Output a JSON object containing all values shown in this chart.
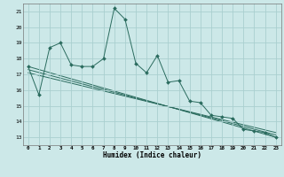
{
  "xlabel": "Humidex (Indice chaleur)",
  "bg_color": "#cce8e8",
  "grid_color": "#aacfcf",
  "line_color": "#2a6b5e",
  "xlim": [
    -0.5,
    23.5
  ],
  "ylim": [
    12.5,
    21.5
  ],
  "yticks": [
    13,
    14,
    15,
    16,
    17,
    18,
    19,
    20,
    21
  ],
  "xticks": [
    0,
    1,
    2,
    3,
    4,
    5,
    6,
    7,
    8,
    9,
    10,
    11,
    12,
    13,
    14,
    15,
    16,
    17,
    18,
    19,
    20,
    21,
    22,
    23
  ],
  "series1": {
    "x": [
      0,
      1,
      2,
      3,
      4,
      5,
      6,
      7,
      8,
      9,
      10,
      11,
      12,
      13,
      14,
      15,
      16,
      17,
      18,
      19,
      20,
      21,
      22,
      23
    ],
    "y": [
      17.5,
      15.7,
      18.7,
      19.0,
      17.6,
      17.5,
      17.5,
      18.0,
      21.2,
      20.5,
      17.7,
      17.1,
      18.2,
      16.5,
      16.6,
      15.3,
      15.2,
      14.4,
      14.3,
      14.2,
      13.5,
      13.4,
      13.3,
      13.0
    ]
  },
  "trend_lines": [
    {
      "x": [
        0,
        23
      ],
      "y": [
        17.5,
        13.0
      ]
    },
    {
      "x": [
        0,
        23
      ],
      "y": [
        17.3,
        13.15
      ]
    },
    {
      "x": [
        0,
        23
      ],
      "y": [
        17.1,
        13.3
      ]
    }
  ]
}
